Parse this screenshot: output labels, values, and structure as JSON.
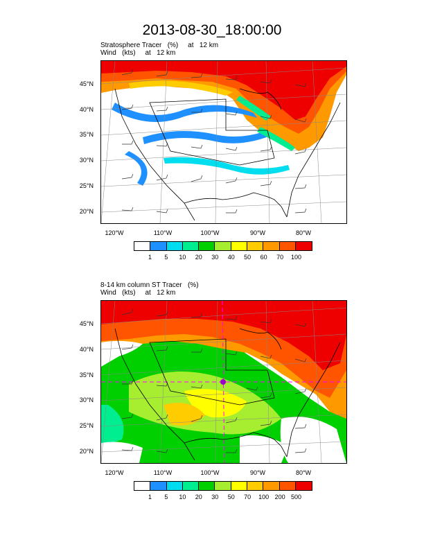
{
  "title": "2013-08-30_18:00:00",
  "panel1": {
    "line1": "Stratosphere Tracer   (%)     at   12 km",
    "line2": "Wind   (kts)     at   12 km",
    "lat_labels": [
      "45°N",
      "40°N",
      "35°N",
      "30°N",
      "25°N",
      "20°N"
    ],
    "lon_labels": [
      "120°W",
      "110°W",
      "100°W",
      "90°W",
      "80°W"
    ],
    "colorbar": {
      "colors": [
        "#ffffff",
        "#1e90ff",
        "#00ddee",
        "#00ee90",
        "#00d000",
        "#a8ee30",
        "#ffff00",
        "#ffcc00",
        "#ff9900",
        "#ff5500",
        "#ee0000"
      ],
      "ticks": [
        "1",
        "5",
        "10",
        "20",
        "30",
        "40",
        "50",
        "60",
        "70",
        "100"
      ]
    }
  },
  "panel2": {
    "line1": "8-14 km column ST Tracer   (%)",
    "line2": "Wind   (kts)     at   12 km",
    "lat_labels": [
      "45°N",
      "40°N",
      "35°N",
      "30°N",
      "25°N",
      "20°N"
    ],
    "lon_labels": [
      "120°W",
      "110°W",
      "100°W",
      "90°W",
      "80°W"
    ],
    "colorbar": {
      "colors": [
        "#ffffff",
        "#1e90ff",
        "#00ddee",
        "#00ee90",
        "#00d000",
        "#a8ee30",
        "#ffff00",
        "#ffcc00",
        "#ff9900",
        "#ff5500",
        "#ee0000"
      ],
      "ticks": [
        "1",
        "5",
        "10",
        "20",
        "30",
        "50",
        "70",
        "100",
        "200",
        "500"
      ]
    }
  }
}
